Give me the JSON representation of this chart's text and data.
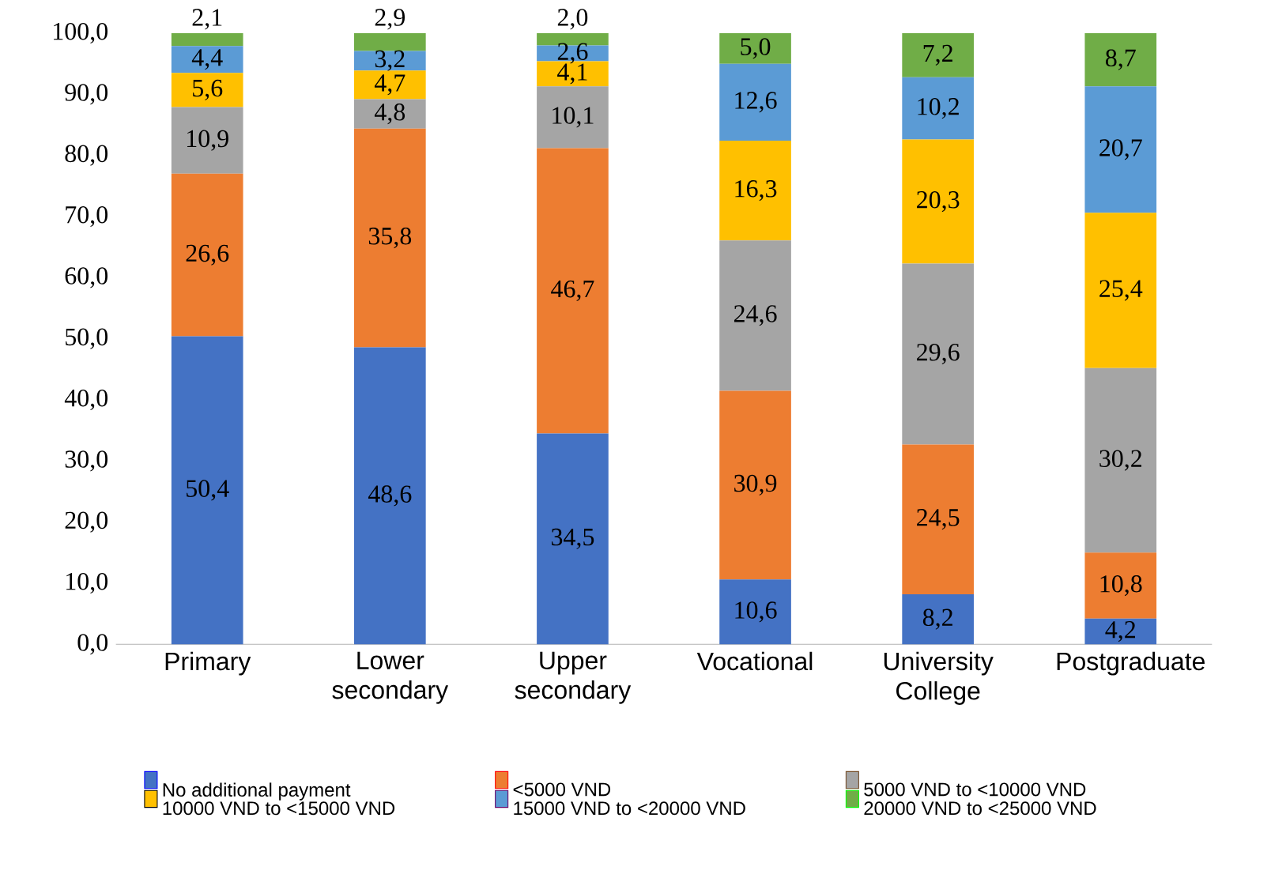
{
  "chart_data": {
    "type": "bar",
    "stacked": true,
    "categories": [
      "Primary",
      "Lower secondary",
      "Upper secondary",
      "Vocational",
      "University College",
      "Postgraduate"
    ],
    "series": [
      {
        "name": "No additional payment",
        "color": "#4472c4",
        "values": [
          50.4,
          48.6,
          34.5,
          10.6,
          8.2,
          4.2
        ],
        "value_labels": [
          "50,4",
          "48,6",
          "34,5",
          "10,6",
          "8,2",
          "4,2"
        ]
      },
      {
        "name": "<5000 VND",
        "color": "#ed7d31",
        "values": [
          26.6,
          35.8,
          46.7,
          30.9,
          24.5,
          10.8
        ],
        "value_labels": [
          "26,6",
          "35,8",
          "46,7",
          "30,9",
          "24,5",
          "10,8"
        ]
      },
      {
        "name": "5000 VND to <10000 VND",
        "color": "#a5a5a5",
        "values": [
          10.9,
          4.8,
          10.1,
          24.6,
          29.6,
          30.2
        ],
        "value_labels": [
          "10,9",
          "4,8",
          "10,1",
          "24,6",
          "29,6",
          "30,2"
        ]
      },
      {
        "name": "10000 VND to <15000 VND",
        "color": "#ffc000",
        "values": [
          5.6,
          4.7,
          4.1,
          16.3,
          20.3,
          25.4
        ],
        "value_labels": [
          "5,6",
          "4,7",
          "4,1",
          "16,3",
          "20,3",
          "25,4"
        ]
      },
      {
        "name": "15000 VND to <20000 VND",
        "color": "#5b9bd5",
        "values": [
          4.4,
          3.2,
          2.6,
          12.6,
          10.2,
          20.7
        ],
        "value_labels": [
          "4,4",
          "3,2",
          "2,6",
          "12,6",
          "10,2",
          "20,7"
        ]
      },
      {
        "name": "20000 VND to <25000 VND",
        "color": "#70ad47",
        "values": [
          2.1,
          2.9,
          2.0,
          5.0,
          7.2,
          8.7
        ],
        "value_labels": [
          "2,1",
          "2,9",
          "2,0",
          "5,0",
          "7,2",
          "8,7"
        ]
      }
    ],
    "ylim": [
      0,
      100
    ],
    "yticks": [
      {
        "value": 0,
        "label": "0,0"
      },
      {
        "value": 10,
        "label": "10,0"
      },
      {
        "value": 20,
        "label": "20,0"
      },
      {
        "value": 30,
        "label": "30,0"
      },
      {
        "value": 40,
        "label": "40,0"
      },
      {
        "value": 50,
        "label": "50,0"
      },
      {
        "value": 60,
        "label": "60,0"
      },
      {
        "value": 70,
        "label": "70,0"
      },
      {
        "value": 80,
        "label": "80,0"
      },
      {
        "value": 90,
        "label": "90,0"
      },
      {
        "value": 100,
        "label": "100,0"
      }
    ],
    "legend": "bottom"
  }
}
